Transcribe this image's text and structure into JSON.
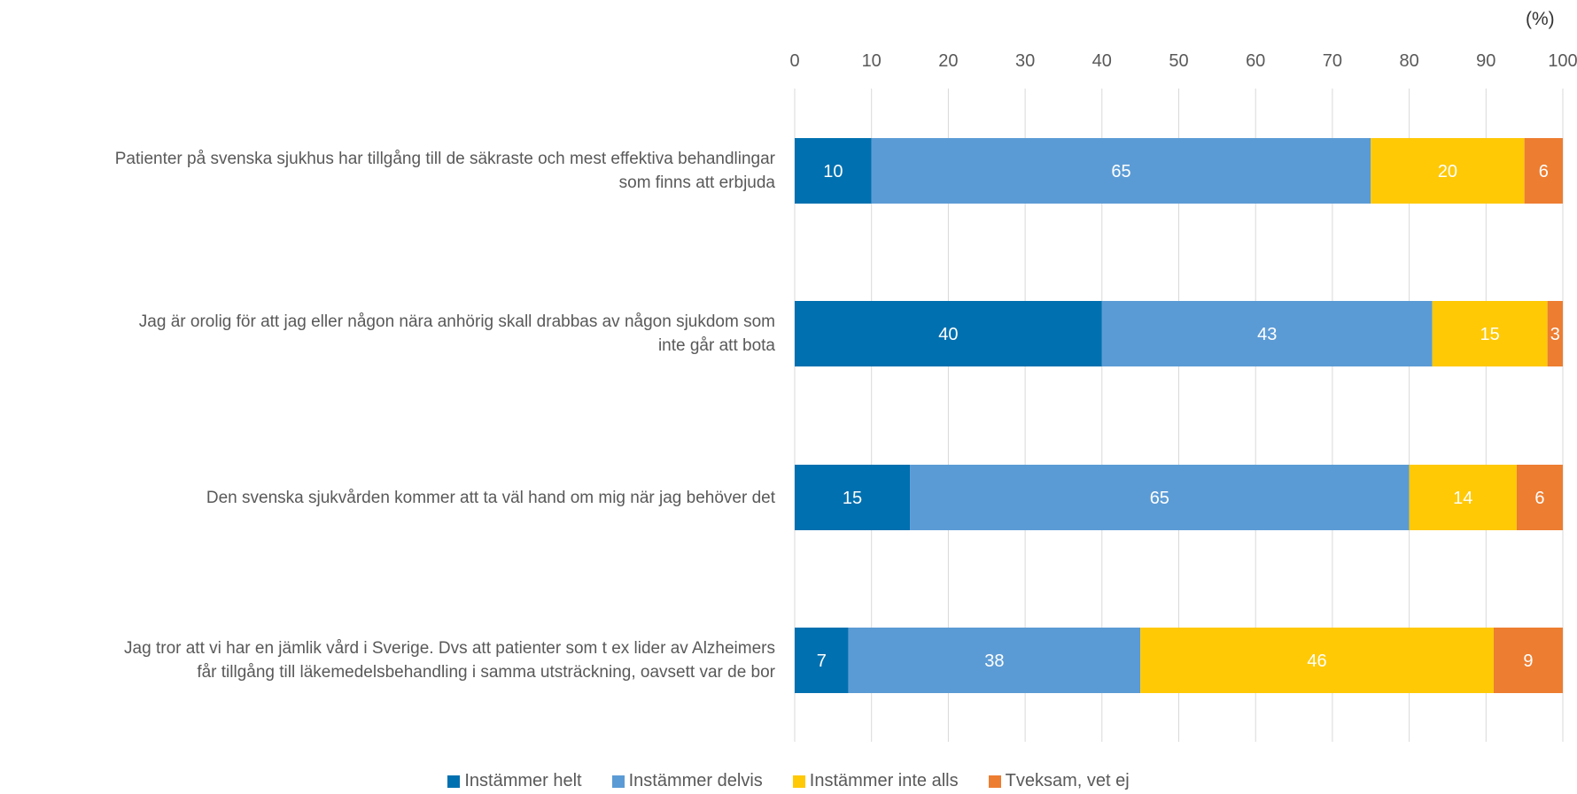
{
  "unit_label": "(%)",
  "colors": {
    "instammer_helt": "#0070b0",
    "instammer_delvis": "#5b9bd5",
    "instammer_inte_alls": "#ffc906",
    "tveksam": "#ed7d31",
    "grid": "#d9d9d9"
  },
  "chart_data": {
    "type": "bar",
    "orientation": "horizontal",
    "stacked": true,
    "xlim": [
      0,
      100
    ],
    "x_ticks": [
      0,
      10,
      20,
      30,
      40,
      50,
      60,
      70,
      80,
      90,
      100
    ],
    "categories": [
      [
        "Patienter på svenska sjukhus har tillgång till de säkraste och mest effektiva behandlingar",
        "som finns att erbjuda"
      ],
      [
        "Jag är orolig för att jag eller någon nära anhörig skall drabbas av någon sjukdom som",
        "inte går att bota"
      ],
      [
        "Den svenska sjukvården kommer att ta väl hand om mig när jag behöver det"
      ],
      [
        "Jag tror att vi har en jämlik vård i Sverige. Dvs att patienter som t ex lider av Alzheimers",
        "får tillgång till läkemedelsbehandling i samma utsträckning, oavsett var de bor"
      ]
    ],
    "series": [
      {
        "name": "Instämmer helt",
        "color": "#0070b0",
        "values": [
          10,
          40,
          15,
          7
        ]
      },
      {
        "name": "Instämmer delvis",
        "color": "#5b9bd5",
        "values": [
          65,
          43,
          65,
          38
        ]
      },
      {
        "name": "Instämmer inte alls",
        "color": "#ffc906",
        "values": [
          20,
          15,
          14,
          46
        ]
      },
      {
        "name": "Tveksam, vet ej",
        "color": "#ed7d31",
        "values": [
          6,
          3,
          6,
          9
        ]
      }
    ],
    "data_labels": true,
    "grid": true,
    "legend_position": "bottom"
  }
}
